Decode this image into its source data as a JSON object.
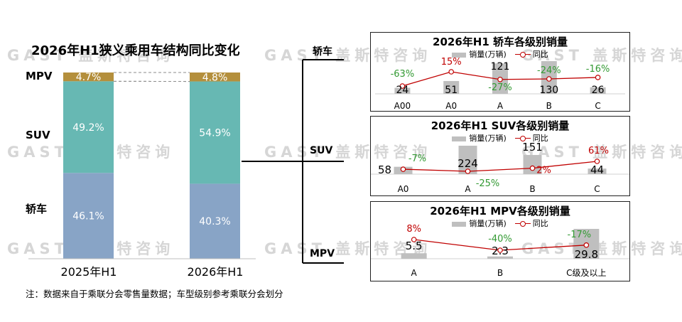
{
  "watermark": "GAST 盖斯特咨询",
  "main": {
    "title": "2026年H1狭义乘用车结构同比变化",
    "footnote": "注：数据来自于乘联分会零售量数据；车型级别参考乘联分会划分",
    "segment_labels": [
      "MPV",
      "SUV",
      "轿车"
    ],
    "year_labels": [
      "2025年H1",
      "2026年H1"
    ]
  },
  "side_labels": [
    "轿车",
    "SUV",
    "MPV"
  ],
  "colors": {
    "sedan": "#88a4c6",
    "suv": "#67b8b3",
    "mpv": "#b48f3c",
    "bar_gray": "#bfbfbf",
    "line_red": "#c00000",
    "pos_red": "#c00000",
    "neg_green": "#339a33"
  },
  "chart_data": [
    {
      "type": "bar",
      "stacked": true,
      "percent": true,
      "title": "2026年H1狭义乘用车结构同比变化",
      "categories": [
        "2025年H1",
        "2026年H1"
      ],
      "series": [
        {
          "name": "轿车",
          "values": [
            46.1,
            40.3
          ],
          "labels": [
            "46.1%",
            "40.3%"
          ]
        },
        {
          "name": "SUV",
          "values": [
            49.2,
            54.9
          ],
          "labels": [
            "49.2%",
            "54.9%"
          ]
        },
        {
          "name": "MPV",
          "values": [
            4.7,
            4.8
          ],
          "labels": [
            "4.7%",
            "4.8%"
          ]
        }
      ],
      "ylim": [
        0,
        100
      ]
    },
    {
      "type": "bar",
      "title": "2026年H1 轿车各级别销量",
      "legend": [
        "销量(万辆)",
        "同比"
      ],
      "categories": [
        "A00",
        "A0",
        "A",
        "B",
        "C"
      ],
      "values": [
        24,
        51,
        121,
        130,
        26
      ],
      "value_labels": [
        "24",
        "51",
        "121",
        "130",
        "26"
      ],
      "yoy": [
        -63,
        15,
        -27,
        -24,
        -16
      ],
      "yoy_labels": [
        "-63%",
        "15%",
        "-27%",
        "-24%",
        "-16%"
      ]
    },
    {
      "type": "bar",
      "title": "2026年H1 SUV各级别销量",
      "legend": [
        "销量(万辆)",
        "同比"
      ],
      "categories": [
        "A0",
        "A",
        "B",
        "C"
      ],
      "values": [
        58,
        224,
        151,
        44
      ],
      "value_labels": [
        "58",
        "224",
        "151",
        "44"
      ],
      "yoy": [
        -7,
        -25,
        2,
        61
      ],
      "yoy_labels": [
        "-7%",
        "-25%",
        "2%",
        "61%"
      ]
    },
    {
      "type": "bar",
      "title": "2026年H1 MPV各级别销量",
      "legend": [
        "销量(万辆)",
        "同比"
      ],
      "categories": [
        "A",
        "B",
        "C级及以上"
      ],
      "values": [
        5.5,
        2.3,
        29.8
      ],
      "value_labels": [
        "5.5",
        "2.3",
        "29.8"
      ],
      "yoy": [
        8,
        -40,
        -17
      ],
      "yoy_labels": [
        "8%",
        "-40%",
        "-17%"
      ]
    }
  ]
}
